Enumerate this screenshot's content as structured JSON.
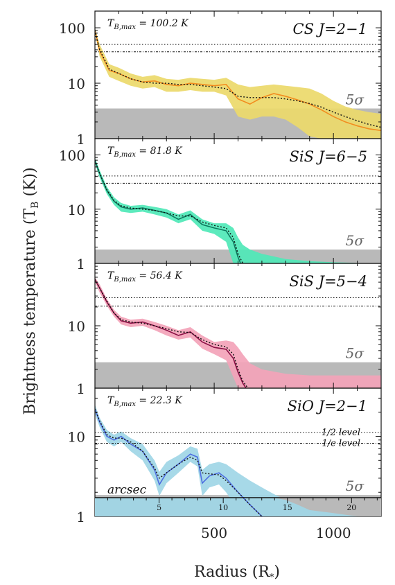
{
  "figure": {
    "ylabel": "Brightness temperature (T",
    "ylabel_sub": "B",
    "ylabel_tail": " (K))",
    "xlabel": "Radius (R",
    "xlabel_sub": "*",
    "xlabel_tail": ")",
    "sigma_label": "5σ",
    "half_level_label": "1/2 level",
    "e_level_label": "1/e level",
    "arcsec_label": "arcsec"
  },
  "chart_data": [
    {
      "type": "line",
      "title": "CS J=2−1",
      "tbmax_label": "T",
      "tbmax_sub": "B,max",
      "tbmax_value": " = 100.2 K",
      "color": "#f28c1e",
      "band_color": "#ecd96a",
      "x": [
        0,
        20,
        60,
        100,
        150,
        200,
        250,
        300,
        350,
        400,
        450,
        500,
        550,
        600,
        650,
        700,
        750,
        800,
        850,
        900,
        950,
        1000,
        1050,
        1100,
        1150,
        1200
      ],
      "y": [
        90,
        38,
        17,
        15,
        12,
        10.5,
        11,
        9.5,
        9,
        10,
        9.5,
        9,
        9.5,
        5.2,
        4.2,
        5.5,
        6.5,
        5.8,
        5,
        4.2,
        3.3,
        2.5,
        2.0,
        1.7,
        1.5,
        1.4
      ],
      "band_low": [
        80,
        30,
        13,
        11,
        9,
        8,
        8.5,
        7,
        7,
        7.5,
        7,
        7,
        6,
        2.5,
        2.2,
        2.5,
        2.5,
        2.2,
        1.6,
        1.1,
        1,
        1,
        1,
        1,
        1,
        1
      ],
      "band_high": [
        100,
        50,
        22,
        19,
        15,
        13,
        14,
        12,
        11.5,
        12.5,
        12,
        11.5,
        12.5,
        9.5,
        8.5,
        9,
        9.5,
        9,
        8.5,
        8,
        6.5,
        4.8,
        3.8,
        3.3,
        3,
        2.8
      ],
      "fit_y": [
        90,
        40,
        18,
        15,
        12,
        10.5,
        10,
        10,
        9.5,
        9.5,
        9,
        8.5,
        8,
        5.8,
        5.5,
        5.5,
        5.5,
        5.2,
        4.8,
        4.3,
        3.7,
        3.0,
        2.5,
        2.1,
        1.8,
        1.6
      ],
      "half_level": 50.1,
      "e_level": 36.9,
      "sigma5": 3.5,
      "ylim": [
        1,
        200
      ]
    },
    {
      "type": "line",
      "title": "SiS J=6−5",
      "tbmax_label": "T",
      "tbmax_sub": "B,max",
      "tbmax_value": " = 81.8 K",
      "color": "#0d7a5e",
      "band_color": "#4fe8b7",
      "x": [
        0,
        20,
        50,
        80,
        110,
        150,
        200,
        250,
        300,
        350,
        400,
        450,
        500,
        550,
        580,
        600,
        620,
        650,
        700,
        800,
        900,
        1000,
        1100,
        1200
      ],
      "y": [
        78,
        45,
        22,
        14,
        11,
        10,
        10.5,
        9.5,
        8.5,
        6.5,
        8,
        5.2,
        4.5,
        4,
        2.5,
        1.3,
        0.8,
        0.6,
        0.5,
        0.5,
        0.5,
        0.5,
        0.5,
        0.5
      ],
      "band_low": [
        70,
        38,
        19,
        12,
        9,
        8.5,
        9,
        8,
        7,
        5.5,
        6.5,
        4,
        3.5,
        2.5,
        1,
        0.8,
        0.6,
        0.5,
        0.5,
        0.5,
        0.5,
        0.5,
        0.5,
        0.5
      ],
      "band_high": [
        88,
        52,
        26,
        16.5,
        13,
        11.5,
        12,
        11,
        10,
        8,
        9.5,
        6.5,
        5.5,
        5.5,
        4.5,
        3,
        2.2,
        1.8,
        1.5,
        1.2,
        1.1,
        1.05,
        1.02,
        1.0
      ],
      "fit_y": [
        80,
        45,
        23,
        14.5,
        11.5,
        10.5,
        10,
        9.5,
        8.5,
        7.5,
        7.5,
        5.8,
        5,
        4.5,
        3,
        1.5,
        1.0,
        0.8,
        0.6,
        0.5,
        0.5,
        0.5,
        0.5,
        0.5
      ],
      "half_level": 40.9,
      "e_level": 30.1,
      "sigma5": 1.8,
      "ylim": [
        1,
        200
      ]
    },
    {
      "type": "line",
      "title": "SiS J=5−4",
      "tbmax_label": "T",
      "tbmax_sub": "B,max",
      "tbmax_value": " = 56.4 K",
      "color": "#8b1045",
      "band_color": "#f3a3b8",
      "x": [
        0,
        20,
        50,
        80,
        110,
        150,
        200,
        250,
        300,
        350,
        400,
        450,
        500,
        550,
        580,
        600,
        620,
        650,
        700,
        800,
        900,
        1000,
        1100,
        1200
      ],
      "y": [
        55,
        40,
        24,
        16,
        12,
        11,
        11.5,
        10,
        8.5,
        7,
        8,
        5.5,
        4.5,
        4.2,
        3,
        1.8,
        1.2,
        0.8,
        0.6,
        0.5,
        0.5,
        0.5,
        0.5,
        0.5
      ],
      "band_low": [
        50,
        34,
        21,
        14,
        10.5,
        9.5,
        10,
        8.5,
        7,
        6,
        6.5,
        4.3,
        3.5,
        2.8,
        1.5,
        1,
        0.8,
        0.6,
        0.5,
        0.5,
        0.5,
        0.5,
        0.5,
        0.5
      ],
      "band_high": [
        60,
        46,
        27,
        18,
        14,
        12.5,
        13,
        11.5,
        10,
        8.5,
        9.5,
        7,
        5.5,
        5.8,
        5.5,
        4.5,
        3.5,
        2.5,
        2,
        1.7,
        1.6,
        1.6,
        1.6,
        1.6
      ],
      "fit_y": [
        56,
        40,
        25,
        16,
        12.5,
        11.5,
        11,
        10,
        9,
        8,
        7.8,
        6,
        5,
        4.6,
        3.5,
        2,
        1.3,
        0.9,
        0.7,
        0.5,
        0.5,
        0.5,
        0.5,
        0.5
      ],
      "half_level": 28.2,
      "e_level": 20.7,
      "sigma5": 2.6,
      "ylim": [
        1,
        100
      ]
    },
    {
      "type": "line",
      "title": "SiO J=2−1",
      "tbmax_label": "T",
      "tbmax_sub": "B,max",
      "tbmax_value": " = 22.3 K",
      "color": "#4d6ee0",
      "band_color": "#9fd6e6",
      "x": [
        0,
        20,
        50,
        80,
        110,
        150,
        200,
        250,
        270,
        300,
        350,
        400,
        430,
        450,
        480,
        520,
        550,
        600,
        650,
        700,
        750,
        800,
        850,
        900,
        1000,
        1100,
        1200
      ],
      "y": [
        22,
        15,
        10,
        9,
        10,
        8,
        6.5,
        3.8,
        2.5,
        3.5,
        4.5,
        6,
        5.5,
        2.6,
        3.2,
        3.5,
        3,
        2,
        1.4,
        1.0,
        0.8,
        0.6,
        0.5,
        0.5,
        0.5,
        0.5,
        0.5
      ],
      "band_low": [
        19,
        13,
        8.5,
        7.5,
        8.5,
        6.5,
        5,
        2.8,
        1.8,
        2.6,
        3.5,
        4.8,
        4.2,
        1.8,
        2.3,
        2.5,
        2,
        1.2,
        0.8,
        0.6,
        0.5,
        0.5,
        0.5,
        0.5,
        0.5,
        0.5,
        0.5
      ],
      "band_high": [
        25,
        17,
        12,
        10.5,
        11.5,
        9.5,
        8,
        5,
        3.6,
        4.8,
        5.8,
        7.5,
        7,
        3.8,
        4.5,
        4.8,
        4.5,
        3.5,
        2.8,
        2.3,
        1.9,
        1.6,
        1.4,
        1.2,
        1.1,
        1.0,
        1.0
      ],
      "fit_y": [
        22,
        15.5,
        10.5,
        9.5,
        9.5,
        8.5,
        6.5,
        4,
        3,
        3.5,
        4.5,
        5.5,
        5,
        3.5,
        3.4,
        3.3,
        2.8,
        2,
        1.4,
        1.0,
        0.7,
        0.5,
        0.5,
        0.5,
        0.5,
        0.5,
        0.5
      ],
      "half_level": 11.2,
      "e_level": 8.2,
      "sigma5": 1.85,
      "ylim": [
        1,
        40
      ]
    }
  ],
  "x_axis": {
    "range": [
      0,
      1200
    ],
    "ticks": [
      500,
      1000
    ],
    "tick_labels": [
      "500",
      "1000"
    ]
  },
  "arcsec_axis": {
    "ticks": [
      5,
      10,
      15,
      20
    ],
    "tick_labels": [
      "5",
      "10",
      "15",
      "20"
    ],
    "radius_per_arcsec": 53.8
  },
  "y_axes": [
    {
      "ticks": [
        1,
        10,
        100
      ],
      "tick_labels": [
        "1",
        "10",
        "100"
      ]
    },
    {
      "ticks": [
        1,
        10,
        100
      ],
      "tick_labels": [
        "1",
        "10",
        "100"
      ]
    },
    {
      "ticks": [
        1,
        10
      ],
      "tick_labels": [
        "1",
        "10"
      ]
    },
    {
      "ticks": [
        1,
        10
      ],
      "tick_labels": [
        "1",
        "10"
      ]
    }
  ]
}
